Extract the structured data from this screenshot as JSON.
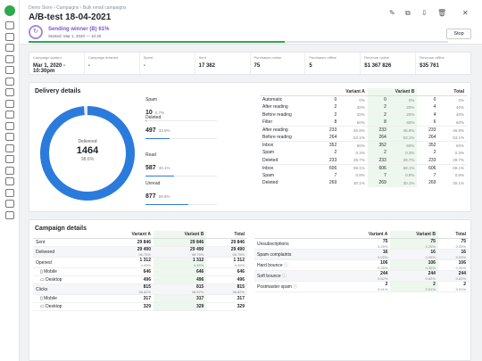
{
  "sidebar": {
    "icons": [
      "logo-icon",
      "dashboard-icon",
      "chart-icon",
      "cart-icon",
      "grid-icon",
      "list-icon",
      "filter-icon",
      "search-icon",
      "monitor-icon",
      "tree-icon",
      "mail-icon",
      "messages-icon",
      "columns-icon",
      "image-icon",
      "grid-icon",
      "smile-icon",
      "help-icon",
      "settings-icon",
      "sidebar-toggle-icon"
    ]
  },
  "header": {
    "breadcrumb": "Demo Store › Campaigns › Bulk email campaigns",
    "title": "A/B-test 18-04-2021",
    "sending_title": "Sending winner (B) 61%",
    "sending_sub": "Started: Mar 1, 2020 — 10:30",
    "progress": 0.61,
    "stop_label": "Stop"
  },
  "metrics": [
    {
      "label": "Campaign started",
      "value": "Mar 1, 2020 - 10:30pm"
    },
    {
      "label": "Campaign finished",
      "value": "-"
    },
    {
      "label": "Spent",
      "value": "-"
    },
    {
      "label": "Sent",
      "value": "17 382"
    },
    {
      "label": "Purchases online",
      "value": "75"
    },
    {
      "label": "Purchases offline",
      "value": "5"
    },
    {
      "label": "Revenue online",
      "value": "$1 367 826"
    },
    {
      "label": "Revenue offline",
      "value": "$35 761"
    }
  ],
  "delivery": {
    "title": "Delivery details",
    "center_label": "Delivered",
    "center_value": "1464",
    "center_pct": "98.6%",
    "legend": [
      {
        "label": "Spam",
        "value": "10",
        "pct": "0.7%",
        "frac": 0.007
      },
      {
        "label": "Deleted",
        "value": "497",
        "pct": "33.9%",
        "frac": 0.339
      },
      {
        "label": "Read",
        "value": "587",
        "pct": "40.1%",
        "frac": 0.401
      },
      {
        "label": "Unread",
        "value": "877",
        "pct": "59.9%",
        "frac": 0.599
      }
    ],
    "headers": [
      "Variant A",
      "Variant B",
      "Total"
    ],
    "rows": [
      {
        "label": "Automatic",
        "a": "0",
        "ap": "0%",
        "b": "0",
        "bp": "0%",
        "t": "0",
        "tp": "0%"
      },
      {
        "label": "After reading",
        "a": "2",
        "ap": "20%",
        "b": "2",
        "bp": "20%",
        "t": "4",
        "tp": "40%"
      },
      {
        "label": "Before reading",
        "a": "2",
        "ap": "20%",
        "b": "2",
        "bp": "20%",
        "t": "4",
        "tp": "40%"
      },
      {
        "label": "Filter",
        "a": "8",
        "ap": "60%",
        "b": "8",
        "bp": "60%",
        "t": "6",
        "tp": "60%"
      },
      {
        "label": "After reading",
        "a": "233",
        "ap": "46.9%",
        "b": "233",
        "bp": "46.9%",
        "t": "233",
        "tp": "46.9%",
        "sep": true
      },
      {
        "label": "Before reading",
        "a": "264",
        "ap": "53.1%",
        "b": "264",
        "bp": "53.1%",
        "t": "264",
        "tp": "53.1%"
      },
      {
        "label": "Inbox",
        "a": "352",
        "ap": "60%",
        "b": "352",
        "bp": "60%",
        "t": "352",
        "tp": "60%",
        "sep": true
      },
      {
        "label": "Spam",
        "a": "2",
        "ap": "0.3%",
        "b": "2",
        "bp": "0.3%",
        "t": "2",
        "tp": "0.3%"
      },
      {
        "label": "Deleted",
        "a": "233",
        "ap": "39.7%",
        "b": "233",
        "bp": "39.7%",
        "t": "233",
        "tp": "39.7%"
      },
      {
        "label": "Inbox",
        "a": "606",
        "ap": "69.1%",
        "b": "606",
        "bp": "69.1%",
        "t": "606",
        "tp": "69.1%",
        "sep": true
      },
      {
        "label": "Spam",
        "a": "7",
        "ap": "0.8%",
        "b": "7",
        "bp": "0.8%",
        "t": "7",
        "tp": "0.8%"
      },
      {
        "label": "Deleted",
        "a": "269",
        "ap": "30.1%",
        "b": "269",
        "bp": "30.1%",
        "t": "269",
        "tp": "30.1%"
      }
    ]
  },
  "campaign": {
    "title": "Campaign details",
    "headers": [
      "Variant A",
      "Variant B",
      "Total"
    ],
    "left": [
      {
        "label": "Sent",
        "a": "29 846",
        "b": "29 846",
        "t": "29 846"
      },
      {
        "label": "Delivered",
        "a": "29 490",
        "ap": "98.75%",
        "b": "29 490",
        "bp": "98.75%",
        "t": "29 490",
        "tp": "98.75%",
        "g": true
      },
      {
        "label": "Opened",
        "a": "1 312",
        "ap": "4.45%",
        "b": "1 312",
        "bp": "4.45%",
        "t": "1 312",
        "tp": "4.45%"
      },
      {
        "label": "Mobile",
        "a": "646",
        "b": "646",
        "t": "646",
        "icon": "mobile-icon"
      },
      {
        "label": "Desktop",
        "a": "496",
        "b": "496",
        "t": "496",
        "icon": "desktop-icon"
      },
      {
        "label": "Clicks",
        "a": "815",
        "ap": "38.82%",
        "b": "815",
        "bp": "38.82%",
        "t": "815",
        "tp": "38.82%",
        "g": true
      },
      {
        "label": "Mobile",
        "a": "317",
        "b": "317",
        "t": "317",
        "icon": "mobile-icon"
      },
      {
        "label": "Desktop",
        "a": "329",
        "b": "329",
        "t": "329",
        "icon": "desktop-icon"
      }
    ],
    "right": [
      {
        "label": "Unsubscriptions",
        "a": "75",
        "ap": "0.25%",
        "b": "75",
        "bp": "0.25%",
        "t": "75",
        "tp": "0.25%"
      },
      {
        "label": "Spam complaints",
        "a": "16",
        "ap": "0.05%",
        "b": "16",
        "bp": "0.05%",
        "t": "16",
        "tp": "0.05%",
        "g": true
      },
      {
        "label": "Hard bounce",
        "a": "106",
        "ap": "0.35%",
        "b": "106",
        "bp": "0.35%",
        "t": "106",
        "tp": "0.35%",
        "info": true
      },
      {
        "label": "Soft bounce",
        "a": "244",
        "ap": "0.82%",
        "b": "244",
        "bp": "0.82%",
        "t": "244",
        "tp": "0.82%",
        "info": true,
        "g": true
      },
      {
        "label": "Postmaster spam",
        "a": "2",
        "ap": "0.01%",
        "b": "2",
        "bp": "0.01%",
        "t": "2",
        "tp": "0.01%",
        "info": true
      }
    ]
  },
  "colors": {
    "accent": "#2fa84f",
    "donut": "#2b7bdc",
    "sending": "#7b58c4"
  }
}
